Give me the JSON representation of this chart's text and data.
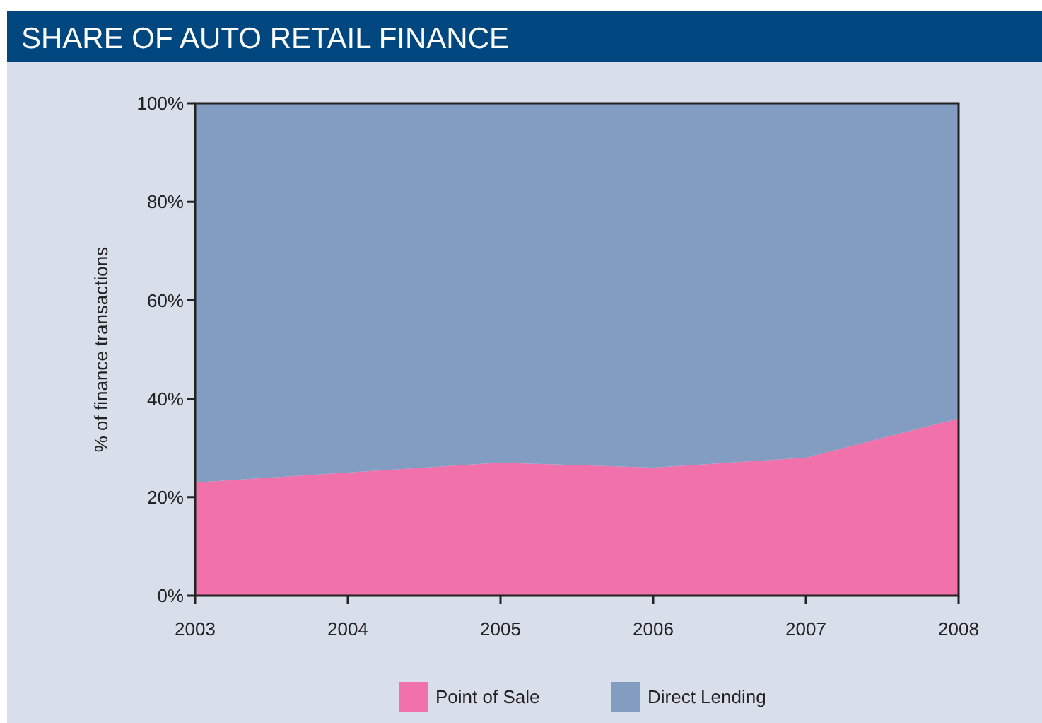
{
  "chart_data": {
    "type": "area",
    "title": "SHARE OF AUTO RETAIL FINANCE",
    "ylabel": "% of finance transactions",
    "stacked": true,
    "x": [
      2003,
      2004,
      2005,
      2006,
      2007,
      2008
    ],
    "series": [
      {
        "name": "Point of Sale",
        "color": "#f172aa",
        "values": [
          23,
          25,
          27,
          26,
          28,
          36
        ]
      },
      {
        "name": "Direct Lending",
        "color": "#839cc2",
        "values": [
          77,
          75,
          73,
          74,
          72,
          64
        ]
      }
    ],
    "xlim": [
      2003,
      2008
    ],
    "xticks": [
      2003,
      2004,
      2005,
      2006,
      2007,
      2008
    ],
    "ylim": [
      0,
      100
    ],
    "yticks": [
      {
        "value": 0,
        "label": "0%"
      },
      {
        "value": 20,
        "label": "20%"
      },
      {
        "value": 40,
        "label": "40%"
      },
      {
        "value": 60,
        "label": "60%"
      },
      {
        "value": 80,
        "label": "80%"
      },
      {
        "value": 100,
        "label": "100%"
      }
    ],
    "legend": "bottom"
  }
}
